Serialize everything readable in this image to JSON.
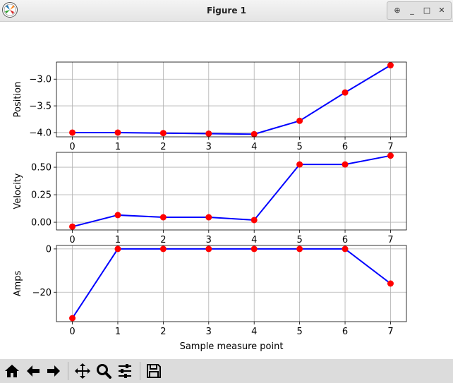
{
  "window": {
    "title": "Figure 1"
  },
  "window_controls": [
    {
      "name": "pin-button",
      "glyph": "⊕"
    },
    {
      "name": "minimize-button",
      "glyph": "_"
    },
    {
      "name": "maximize-button",
      "glyph": "□"
    },
    {
      "name": "close-button",
      "glyph": "✕"
    }
  ],
  "toolbar": {
    "buttons": [
      {
        "name": "home-button",
        "icon": "home-icon"
      },
      {
        "name": "back-button",
        "icon": "arrow-left-icon"
      },
      {
        "name": "forward-button",
        "icon": "arrow-right-icon"
      },
      {
        "name": "pan-button",
        "icon": "move-icon"
      },
      {
        "name": "zoom-button",
        "icon": "magnifier-icon"
      },
      {
        "name": "configure-subplots-button",
        "icon": "sliders-icon"
      },
      {
        "name": "save-button",
        "icon": "floppy-disk-icon"
      }
    ]
  },
  "chart_data": [
    {
      "type": "line",
      "title": "",
      "xlabel": "",
      "ylabel": "Position",
      "x": [
        0,
        1,
        2,
        3,
        4,
        5,
        6,
        7
      ],
      "series": [
        {
          "values": [
            -4.0,
            -4.0,
            -4.01,
            -4.02,
            -4.03,
            -3.78,
            -3.25,
            -2.74
          ],
          "line_color": "#0000ff",
          "marker_color": "#ff0000"
        }
      ],
      "xlim": [
        -0.35,
        7.35
      ],
      "ylim": [
        -4.08,
        -2.68
      ],
      "x_ticks": [
        0,
        1,
        2,
        3,
        4,
        5,
        6,
        7
      ],
      "y_ticks": [
        -4.0,
        -3.5,
        -3.0
      ],
      "y_tick_labels": [
        "−4.0",
        "−3.5",
        "−3.0"
      ],
      "grid": true
    },
    {
      "type": "line",
      "title": "",
      "xlabel": "",
      "ylabel": "Velocity",
      "x": [
        0,
        1,
        2,
        3,
        4,
        5,
        6,
        7
      ],
      "series": [
        {
          "values": [
            -0.04,
            0.065,
            0.045,
            0.045,
            0.02,
            0.525,
            0.525,
            0.605
          ],
          "line_color": "#0000ff",
          "marker_color": "#ff0000"
        }
      ],
      "xlim": [
        -0.35,
        7.35
      ],
      "ylim": [
        -0.07,
        0.635
      ],
      "x_ticks": [
        0,
        1,
        2,
        3,
        4,
        5,
        6,
        7
      ],
      "y_ticks": [
        0.0,
        0.25,
        0.5
      ],
      "y_tick_labels": [
        "0.00",
        "0.25",
        "0.50"
      ],
      "grid": true
    },
    {
      "type": "line",
      "title": "",
      "xlabel": "Sample measure point",
      "ylabel": "Amps",
      "x": [
        0,
        1,
        2,
        3,
        4,
        5,
        6,
        7
      ],
      "series": [
        {
          "values": [
            -32,
            0,
            0,
            0,
            0,
            0,
            0,
            -16
          ],
          "line_color": "#0000ff",
          "marker_color": "#ff0000"
        }
      ],
      "xlim": [
        -0.35,
        7.35
      ],
      "ylim": [
        -33.6,
        1.6
      ],
      "x_ticks": [
        0,
        1,
        2,
        3,
        4,
        5,
        6,
        7
      ],
      "y_ticks": [
        -20,
        0
      ],
      "y_tick_labels": [
        "−20",
        "0"
      ],
      "grid": true
    }
  ]
}
